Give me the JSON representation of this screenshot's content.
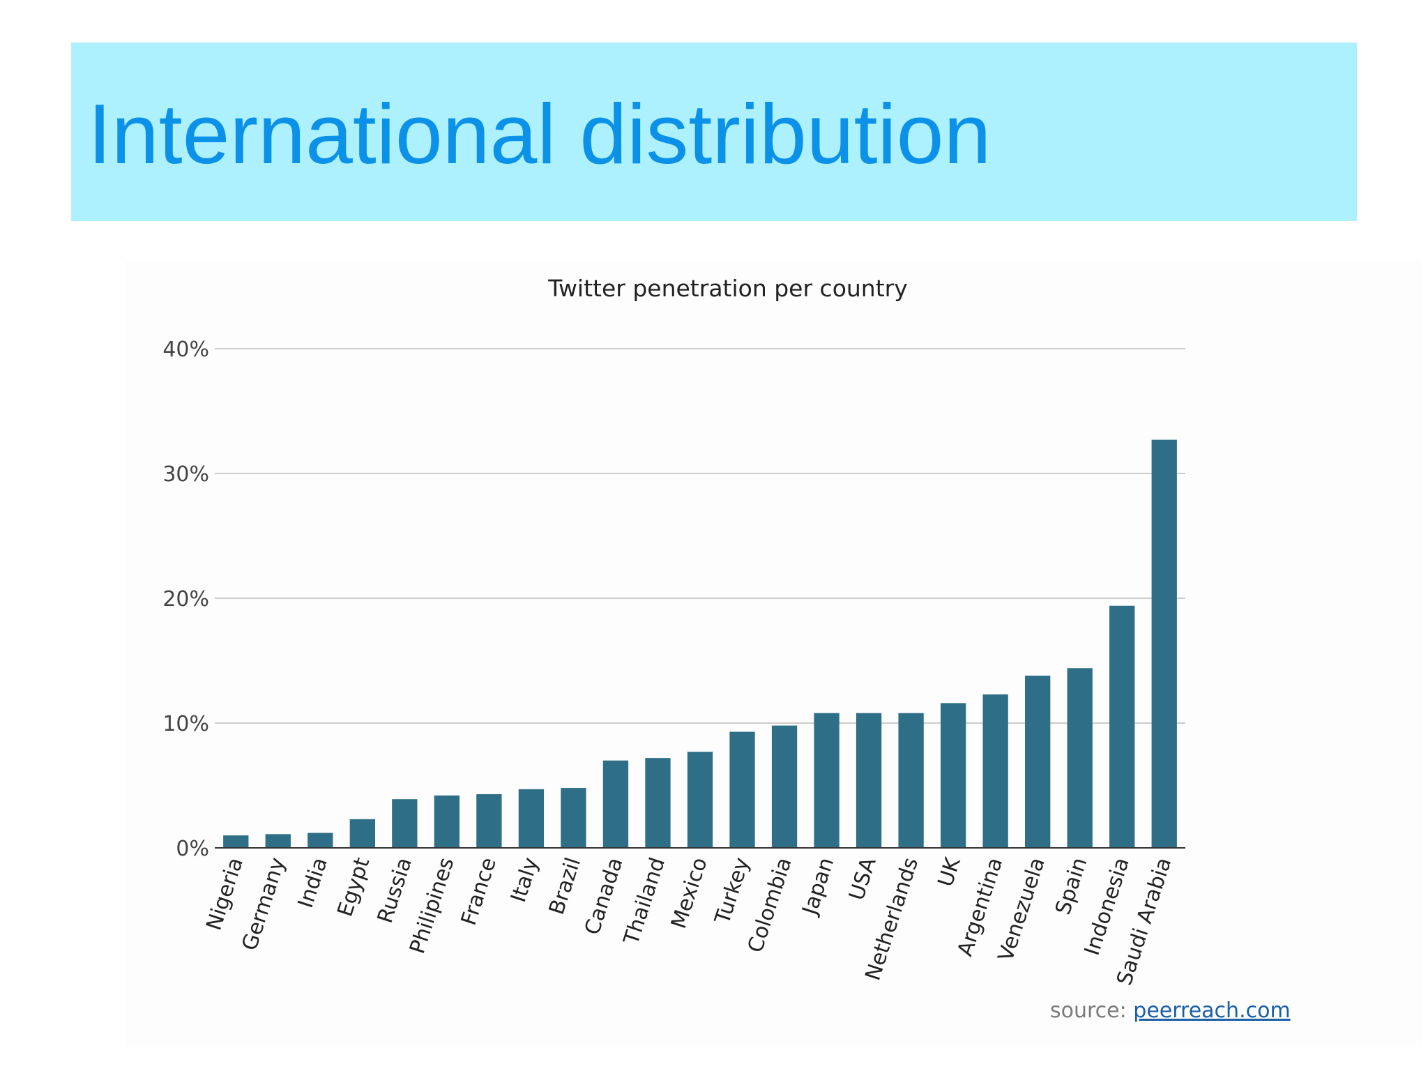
{
  "slide": {
    "title": "International distribution"
  },
  "source": {
    "label": "source:",
    "link_text": "peerreach.com"
  },
  "colors": {
    "banner": "#adf1fe",
    "title": "#0b92e8",
    "bar": "#2e6f87",
    "grid": "#cccccc"
  },
  "chart_data": {
    "type": "bar",
    "title": "Twitter penetration per country",
    "xlabel": "",
    "ylabel": "",
    "ylim": [
      0,
      40
    ],
    "yticks": [
      "0%",
      "10%",
      "20%",
      "30%",
      "40%"
    ],
    "grid": true,
    "categories": [
      "Nigeria",
      "Germany",
      "India",
      "Egypt",
      "Russia",
      "Philipines",
      "France",
      "Italy",
      "Brazil",
      "Canada",
      "Thailand",
      "Mexico",
      "Turkey",
      "Colombia",
      "Japan",
      "USA",
      "Netherlands",
      "UK",
      "Argentina",
      "Venezuela",
      "Spain",
      "Indonesia",
      "Saudi Arabia"
    ],
    "values": [
      1.0,
      1.1,
      1.2,
      2.3,
      3.9,
      4.2,
      4.3,
      4.7,
      4.8,
      7.0,
      7.2,
      7.7,
      9.3,
      9.8,
      10.8,
      10.8,
      10.8,
      11.6,
      12.3,
      13.8,
      14.4,
      19.4,
      32.7
    ]
  }
}
